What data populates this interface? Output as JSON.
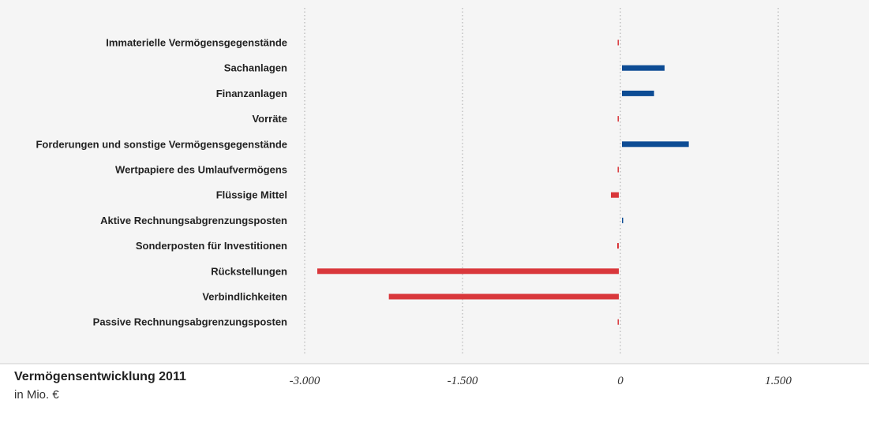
{
  "chart_data": {
    "type": "bar",
    "orientation": "horizontal",
    "title": "Vermögensentwicklung 2011",
    "subtitle": "in Mio. €",
    "categories": [
      "Immaterielle Vermögensgegenstände",
      "Sachanlagen",
      "Finanzanlagen",
      "Vorräte",
      "Forderungen und sonstige Vermögensgegenstände",
      "Wertpapiere des Umlaufvermögens",
      "Flüssige Mittel",
      "Aktive Rechnungsabgrenzungsposten",
      "Sonderposten für Investitionen",
      "Rückstellungen",
      "Verbindlichkeiten",
      "Passive Rechnungsabgrenzungsposten"
    ],
    "values": [
      -10,
      420,
      320,
      -25,
      650,
      -10,
      -90,
      10,
      -30,
      -2880,
      -2200,
      -10
    ],
    "xlim": [
      -3000,
      2000
    ],
    "xticks": [
      -3000,
      -1500,
      0,
      1500
    ],
    "xtick_labels": [
      "-3.000",
      "-1.500",
      "0",
      "1.500"
    ],
    "grid": "vertical dotted",
    "colors": {
      "positive": "#0d4c94",
      "negative": "#d9373b",
      "background": "#f5f5f5"
    }
  }
}
